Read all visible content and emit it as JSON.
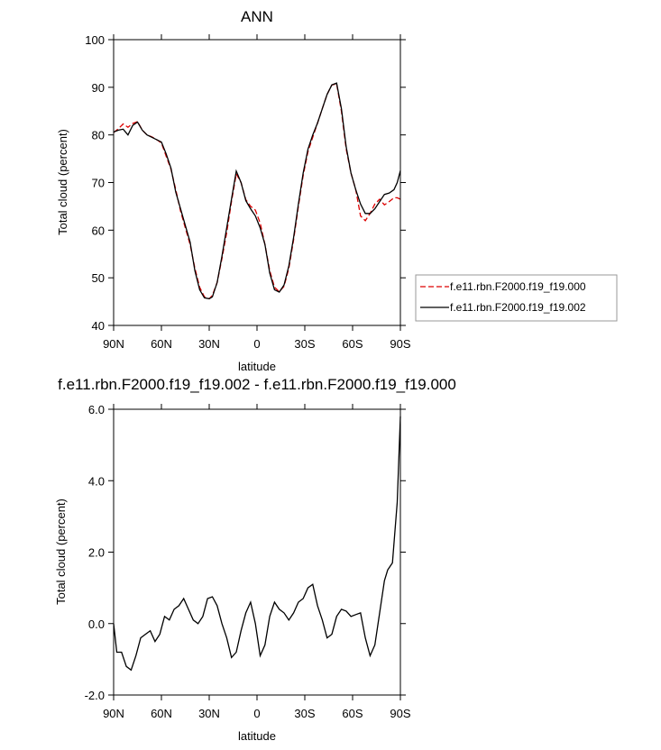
{
  "chart_data": [
    {
      "type": "line",
      "title": "ANN",
      "xlabel": "latitude",
      "ylabel": "Total cloud (percent)",
      "xlim": [
        90,
        -90
      ],
      "ylim": [
        40,
        100
      ],
      "xticks": [
        {
          "value": 90,
          "label": "90N"
        },
        {
          "value": 60,
          "label": "60N"
        },
        {
          "value": 30,
          "label": "30N"
        },
        {
          "value": 0,
          "label": "0"
        },
        {
          "value": -30,
          "label": "30S"
        },
        {
          "value": -60,
          "label": "60S"
        },
        {
          "value": -90,
          "label": "90S"
        }
      ],
      "yticks": [
        {
          "value": 40,
          "label": "40"
        },
        {
          "value": 50,
          "label": "50"
        },
        {
          "value": 60,
          "label": "60"
        },
        {
          "value": 70,
          "label": "70"
        },
        {
          "value": 80,
          "label": "80"
        },
        {
          "value": 90,
          "label": "90"
        },
        {
          "value": 100,
          "label": "100"
        }
      ],
      "legend": {
        "placement": "right"
      },
      "series": [
        {
          "name": "f.e11.rbn.F2000.f19_f19.000",
          "color": "#dd0000",
          "dash": "dashed",
          "x": [
            90,
            87,
            84,
            81,
            78,
            75,
            72,
            69,
            66,
            63,
            60,
            57,
            54,
            51,
            48,
            45,
            42,
            39,
            36,
            33,
            30,
            28,
            25,
            22,
            19,
            16,
            13,
            10,
            7,
            4,
            1,
            -2,
            -5,
            -8,
            -11,
            -14,
            -17,
            -20,
            -23,
            -26,
            -29,
            -32,
            -35,
            -38,
            -41,
            -44,
            -47,
            -50,
            -53,
            -56,
            -59,
            -62,
            -65,
            -68,
            -71,
            -74,
            -77,
            -80,
            -83,
            -86,
            -88,
            -90
          ],
          "y": [
            80.5,
            81.3,
            82.3,
            81.6,
            82.4,
            82.8,
            81.0,
            80.0,
            79.6,
            79.0,
            78.3,
            75.5,
            72.8,
            68.5,
            64.0,
            60.5,
            57.0,
            52.0,
            48.0,
            46.0,
            45.6,
            46.3,
            49.0,
            54.0,
            59.5,
            66.0,
            71.8,
            70.0,
            66.4,
            65.0,
            64.2,
            61.5,
            57.0,
            51.5,
            48.0,
            47.1,
            48.2,
            52.0,
            58.0,
            65.0,
            71.5,
            76.5,
            79.5,
            82.5,
            85.5,
            88.5,
            90.5,
            90.7,
            85.0,
            77.0,
            72.0,
            68.5,
            63.0,
            62.0,
            63.5,
            65.5,
            66.5,
            65.3,
            66.0,
            66.8,
            66.8,
            66.5
          ]
        },
        {
          "name": "f.e11.rbn.F2000.f19_f19.002",
          "color": "#000000",
          "dash": "solid",
          "x": [
            90,
            87,
            84,
            81,
            78,
            75,
            72,
            69,
            66,
            63,
            60,
            57,
            54,
            51,
            48,
            45,
            42,
            39,
            36,
            33,
            30,
            28,
            25,
            22,
            19,
            16,
            13,
            10,
            7,
            4,
            1,
            -2,
            -5,
            -8,
            -11,
            -14,
            -17,
            -20,
            -23,
            -26,
            -29,
            -32,
            -35,
            -38,
            -41,
            -44,
            -47,
            -50,
            -53,
            -56,
            -59,
            -62,
            -65,
            -68,
            -71,
            -74,
            -77,
            -80,
            -83,
            -86,
            -88,
            -90
          ],
          "y": [
            80.6,
            81.0,
            81.2,
            80.0,
            82.0,
            82.7,
            81.0,
            80.0,
            79.5,
            79.0,
            78.5,
            76.0,
            73.0,
            68.0,
            64.5,
            61.0,
            57.5,
            51.5,
            47.5,
            45.8,
            45.6,
            46.0,
            49.0,
            54.5,
            60.5,
            66.5,
            72.4,
            70.0,
            66.2,
            64.5,
            63.0,
            60.5,
            57.0,
            51.0,
            47.5,
            47.0,
            48.5,
            52.5,
            58.5,
            65.5,
            72.0,
            77.0,
            80.0,
            82.5,
            85.5,
            88.5,
            90.5,
            90.9,
            85.5,
            77.5,
            72.0,
            68.5,
            65.5,
            63.5,
            63.5,
            64.5,
            66.0,
            67.5,
            67.8,
            68.5,
            70.0,
            72.5
          ]
        }
      ]
    },
    {
      "type": "line",
      "title": "f.e11.rbn.F2000.f19_f19.002 - f.e11.rbn.F2000.f19_f19.000",
      "xlabel": "latitude",
      "ylabel": "Total cloud (percent)",
      "xlim": [
        90,
        -90
      ],
      "ylim": [
        -2.0,
        6.0
      ],
      "xticks": [
        {
          "value": 90,
          "label": "90N"
        },
        {
          "value": 60,
          "label": "60N"
        },
        {
          "value": 30,
          "label": "30N"
        },
        {
          "value": 0,
          "label": "0"
        },
        {
          "value": -30,
          "label": "30S"
        },
        {
          "value": -60,
          "label": "60S"
        },
        {
          "value": -90,
          "label": "90S"
        }
      ],
      "yticks": [
        {
          "value": -2.0,
          "label": "-2.0"
        },
        {
          "value": 0.0,
          "label": "0.0"
        },
        {
          "value": 2.0,
          "label": "2.0"
        },
        {
          "value": 4.0,
          "label": "4.0"
        },
        {
          "value": 6.0,
          "label": "6.0"
        }
      ],
      "series": [
        {
          "color": "#000000",
          "dash": "solid",
          "x": [
            90,
            88,
            85,
            82,
            79,
            76,
            73,
            70,
            67,
            64,
            61,
            58,
            55,
            52,
            49,
            46,
            43,
            40,
            37,
            34,
            31,
            28,
            25,
            22,
            19,
            16,
            13,
            10,
            7,
            4,
            1,
            -2,
            -5,
            -8,
            -11,
            -14,
            -17,
            -20,
            -23,
            -26,
            -29,
            -32,
            -35,
            -38,
            -41,
            -44,
            -47,
            -50,
            -53,
            -56,
            -59,
            -62,
            -65,
            -68,
            -71,
            -74,
            -77,
            -80,
            -82,
            -85,
            -88,
            -90
          ],
          "y": [
            0.0,
            -0.8,
            -0.8,
            -1.2,
            -1.3,
            -0.9,
            -0.4,
            -0.3,
            -0.2,
            -0.5,
            -0.3,
            0.2,
            0.1,
            0.4,
            0.5,
            0.7,
            0.4,
            0.1,
            0.0,
            0.2,
            0.7,
            0.75,
            0.5,
            0.0,
            -0.4,
            -0.95,
            -0.8,
            -0.2,
            0.3,
            0.6,
            0.0,
            -0.9,
            -0.6,
            0.2,
            0.6,
            0.4,
            0.3,
            0.1,
            0.3,
            0.6,
            0.7,
            1.0,
            1.1,
            0.5,
            0.1,
            -0.4,
            -0.3,
            0.2,
            0.4,
            0.35,
            0.2,
            0.25,
            0.3,
            -0.4,
            -0.9,
            -0.6,
            0.3,
            1.2,
            1.5,
            1.7,
            3.4,
            5.8
          ]
        }
      ]
    }
  ]
}
